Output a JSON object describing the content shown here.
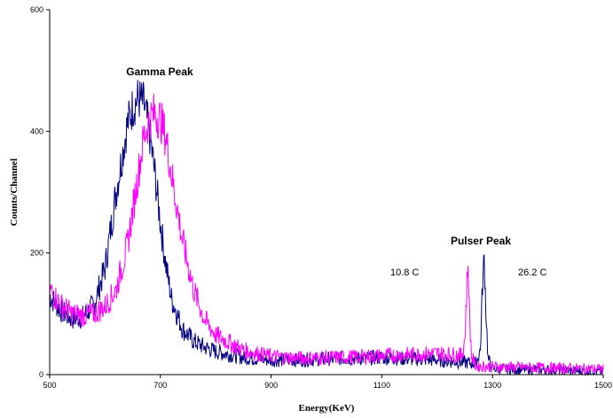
{
  "chart_data": {
    "type": "line",
    "title": "",
    "xlabel": "Energy(KeV)",
    "ylabel": "Counts/Channel",
    "xlim": [
      500,
      1500
    ],
    "ylim": [
      0,
      600
    ],
    "x_ticks": [
      500,
      700,
      900,
      1100,
      1300,
      1500
    ],
    "y_ticks": [
      0,
      200,
      400,
      600
    ],
    "grid": false,
    "legend": "none",
    "annotations": [
      {
        "id": "gamma",
        "text": "Gamma Peak",
        "bold": true
      },
      {
        "id": "pulser",
        "text": "Pulser Peak",
        "bold": true
      },
      {
        "id": "temp1",
        "text": "10.8 C",
        "bold": false
      },
      {
        "id": "temp2",
        "text": "26.2 C",
        "bold": false
      }
    ],
    "series": [
      {
        "color": "#000080",
        "peak_center": 663,
        "peak_sigma": 38,
        "peak_height": 440,
        "pulser_center": 1285,
        "pulser_height": 192,
        "x": [
          500,
          520,
          540,
          560,
          580,
          600,
          620,
          640,
          650,
          660,
          670,
          680,
          690,
          700,
          710,
          720,
          740,
          760,
          780,
          800,
          850,
          900,
          950,
          1000,
          1050,
          1100,
          1150,
          1200,
          1250,
          1270,
          1278,
          1282,
          1285,
          1288,
          1292,
          1300,
          1350,
          1400,
          1450,
          1500
        ],
        "y": [
          130,
          105,
          92,
          95,
          115,
          175,
          300,
          410,
          440,
          455,
          445,
          400,
          330,
          250,
          180,
          125,
          75,
          55,
          45,
          38,
          28,
          24,
          24,
          26,
          27,
          28,
          26,
          24,
          20,
          18,
          40,
          150,
          192,
          110,
          25,
          10,
          8,
          8,
          6,
          5
        ]
      },
      {
        "color": "#ff00ff",
        "peak_center": 690,
        "peak_sigma": 40,
        "peak_height": 425,
        "pulser_center": 1256,
        "pulser_height": 185,
        "x": [
          500,
          520,
          540,
          560,
          580,
          600,
          620,
          640,
          660,
          670,
          680,
          690,
          700,
          710,
          720,
          740,
          760,
          780,
          800,
          850,
          900,
          950,
          1000,
          1050,
          1100,
          1150,
          1200,
          1230,
          1245,
          1250,
          1254,
          1256,
          1258,
          1262,
          1270,
          1300,
          1350,
          1400,
          1450,
          1500
        ],
        "y": [
          140,
          115,
          100,
          97,
          100,
          112,
          140,
          210,
          330,
          390,
          420,
          430,
          420,
          390,
          330,
          220,
          140,
          90,
          65,
          40,
          30,
          27,
          28,
          29,
          31,
          33,
          35,
          33,
          32,
          60,
          150,
          185,
          110,
          30,
          14,
          13,
          12,
          11,
          10,
          9
        ]
      }
    ]
  }
}
